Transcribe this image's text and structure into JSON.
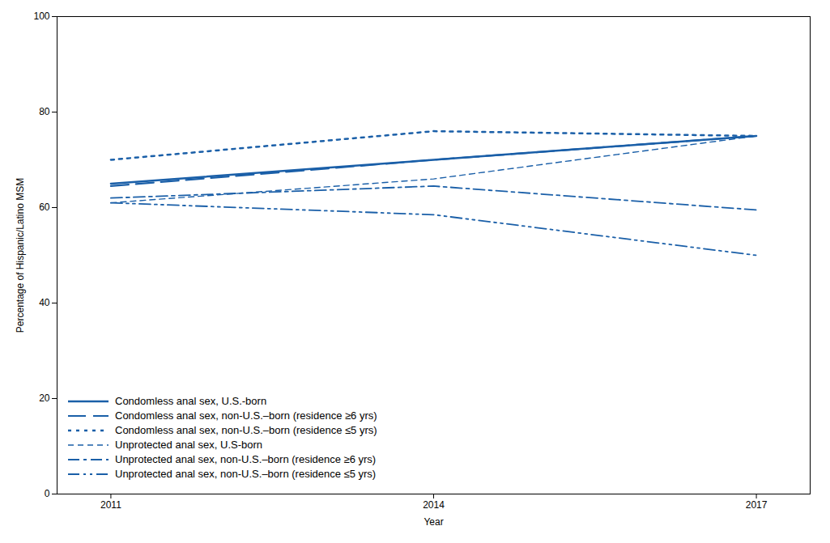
{
  "chart_data": {
    "type": "line",
    "x": [
      2011,
      2014,
      2017
    ],
    "series": [
      {
        "name": "Condomless anal sex, U.S.-born",
        "color": "#1a5fa8",
        "values": [
          65,
          70,
          75
        ],
        "line_style": "solid"
      },
      {
        "name": "Condomless anal sex, non-U.S.–born (residence ≥6 yrs)",
        "color": "#1a5fa8",
        "values": [
          64.5,
          70,
          75
        ],
        "line_style": "long_dash"
      },
      {
        "name": "Condomless anal sex, non-U.S.–born (residence ≤5 yrs)",
        "color": "#1a5fa8",
        "values": [
          70,
          76,
          75
        ],
        "line_style": "dotted"
      },
      {
        "name": "Unprotected anal sex, U.S-born",
        "color": "#1a5fa8",
        "values": [
          61,
          66,
          75
        ],
        "line_style": "short_dash"
      },
      {
        "name": "Unprotected anal sex, non-U.S.–born (residence ≥6 yrs)",
        "color": "#1a5fa8",
        "values": [
          62,
          64.5,
          59.5
        ],
        "line_style": "dash_dot"
      },
      {
        "name": "Unprotected anal sex, non-U.S.–born (residence ≤5 yrs)",
        "color": "#1a5fa8",
        "values": [
          61,
          58.5,
          50
        ],
        "line_style": "dash_dot_dot"
      }
    ],
    "xlabel": "Year",
    "ylabel": "Percentage of Hispanic/Latino MSM",
    "xlim": [
      2010.5,
      2017.5
    ],
    "ylim": [
      0,
      100
    ],
    "xticks": [
      2011,
      2014,
      2017
    ],
    "yticks": [
      0,
      20,
      40,
      60,
      80,
      100
    ],
    "grid": false,
    "legend": "lower left"
  }
}
